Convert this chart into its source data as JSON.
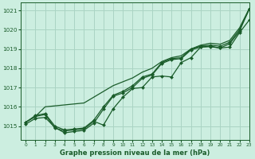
{
  "title": "Graphe pression niveau de la mer (hPa)",
  "background_color": "#cceee0",
  "grid_color": "#aad4c4",
  "line_color": "#1a5c2a",
  "marker_color": "#1a5c2a",
  "xlim": [
    -0.5,
    23
  ],
  "ylim": [
    1014.3,
    1021.4
  ],
  "yticks": [
    1015,
    1016,
    1017,
    1018,
    1019,
    1020,
    1021
  ],
  "xticks": [
    0,
    1,
    2,
    3,
    4,
    5,
    6,
    7,
    8,
    9,
    10,
    11,
    12,
    13,
    14,
    15,
    16,
    17,
    18,
    19,
    20,
    21,
    22,
    23
  ],
  "series": [
    {
      "y": [
        1015.2,
        1015.5,
        1015.6,
        1014.9,
        1014.75,
        1014.8,
        1014.85,
        1015.25,
        1015.05,
        1015.9,
        1016.5,
        1016.95,
        1017.0,
        1017.55,
        1017.6,
        1017.55,
        1018.3,
        1018.55,
        1019.1,
        1019.15,
        1019.05,
        1019.1,
        1019.85,
        1020.5
      ],
      "has_markers": true
    },
    {
      "y": [
        1015.2,
        1015.55,
        1015.65,
        1015.0,
        1014.8,
        1014.85,
        1014.9,
        1015.3,
        1016.0,
        1016.6,
        1016.8,
        1017.1,
        1017.55,
        1017.7,
        1018.3,
        1018.5,
        1018.55,
        1019.0,
        1019.15,
        1019.2,
        1019.15,
        1019.35,
        1020.0,
        1021.05
      ],
      "has_markers": true
    },
    {
      "y": [
        1015.2,
        1015.5,
        1016.0,
        1016.05,
        1016.1,
        1016.15,
        1016.2,
        1016.5,
        1016.8,
        1017.1,
        1017.3,
        1017.5,
        1017.8,
        1018.0,
        1018.35,
        1018.55,
        1018.65,
        1019.0,
        1019.2,
        1019.3,
        1019.25,
        1019.45,
        1020.1,
        1021.1
      ],
      "has_markers": false
    },
    {
      "y": [
        1015.1,
        1015.4,
        1015.45,
        1014.93,
        1014.65,
        1014.72,
        1014.78,
        1015.15,
        1015.88,
        1016.55,
        1016.72,
        1017.0,
        1017.48,
        1017.65,
        1018.25,
        1018.45,
        1018.5,
        1018.95,
        1019.1,
        1019.12,
        1019.05,
        1019.28,
        1019.92,
        1021.1
      ],
      "has_markers": true
    }
  ]
}
